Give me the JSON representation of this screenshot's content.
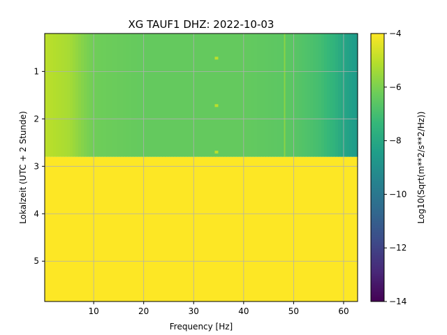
{
  "chart_data": {
    "type": "heatmap",
    "title": "XG TAUF1  DHZ: 2022-10-03",
    "xlabel": "Frequency [Hz]",
    "ylabel": "Lokalzeit (UTC + 2 Stunde)",
    "colorbar_label": "Log10(Sqrt(m**2/s**2/Hz))",
    "colormap": "viridis",
    "xlim": [
      0.2,
      62.8
    ],
    "ylim": [
      5.85,
      0.2
    ],
    "clim": [
      -14,
      -4
    ],
    "x_ticks": [
      10,
      20,
      30,
      40,
      50,
      60
    ],
    "y_ticks": [
      1,
      2,
      3,
      4,
      5
    ],
    "colorbar_ticks": [
      -4,
      -6,
      -8,
      -10,
      -12,
      -14
    ],
    "grid": true,
    "data_end_hour": 2.8,
    "fill_value_after_data": -4,
    "spectrum_profile": {
      "frequency_hz": [
        0.2,
        5,
        8,
        10,
        20,
        30,
        40,
        45,
        50,
        55,
        58,
        60,
        62.8
      ],
      "log10_psd": [
        -5.0,
        -5.3,
        -5.9,
        -6.2,
        -6.4,
        -6.4,
        -6.4,
        -6.5,
        -6.6,
        -7.0,
        -7.5,
        -8.1,
        -8.6
      ]
    },
    "spectral_lines_hz": [
      48.2
    ],
    "transient_spots": [
      {
        "frequency_hz": 34.5,
        "hour": 0.72
      },
      {
        "frequency_hz": 34.5,
        "hour": 1.72
      },
      {
        "frequency_hz": 34.5,
        "hour": 2.7
      }
    ]
  }
}
